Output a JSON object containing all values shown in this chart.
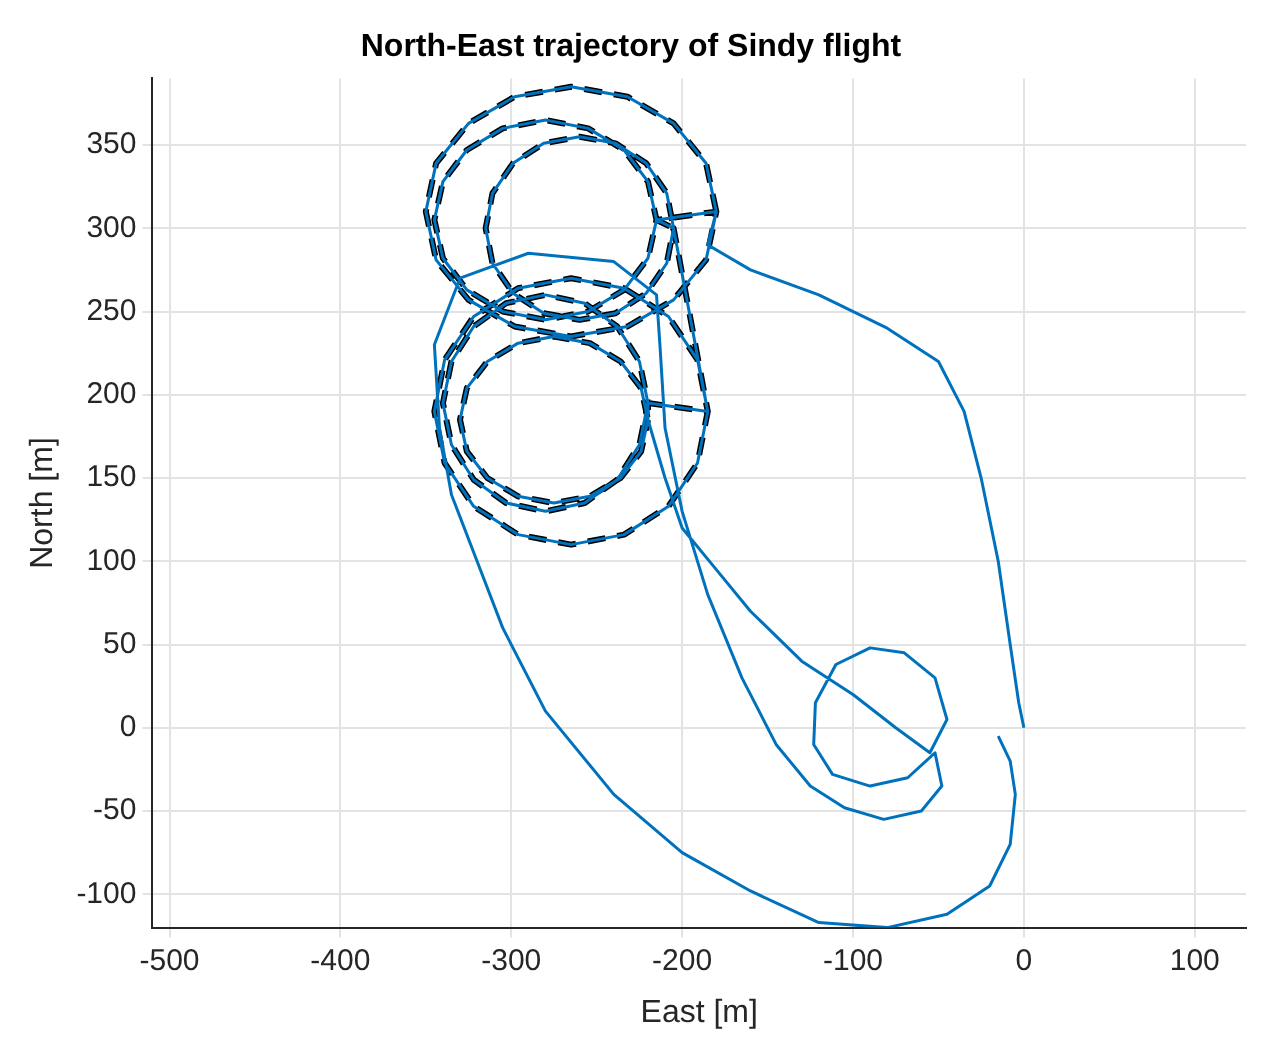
{
  "chart_data": {
    "type": "line",
    "title": "North-East trajectory of Sindy flight",
    "xlabel": "East [m]",
    "ylabel": "North [m]",
    "xlim": [
      -510,
      130
    ],
    "ylim": [
      -120,
      390
    ],
    "xticks": [
      -500,
      -400,
      -300,
      -200,
      -100,
      0,
      100
    ],
    "yticks": [
      -100,
      -50,
      0,
      50,
      100,
      150,
      200,
      250,
      300,
      350
    ],
    "grid": true,
    "legend": false,
    "marker": "none",
    "series": [
      {
        "color": "#0072bd",
        "line_style": "solid",
        "x": [
          0,
          -3,
          -8,
          -15,
          -25,
          -35,
          -50,
          -80,
          -120,
          -160,
          -185,
          -180,
          -186,
          -205,
          -232,
          -265,
          -298,
          -325,
          -344,
          -350,
          -344,
          -325,
          -298,
          -265,
          -232,
          -205,
          -186,
          -180,
          -215,
          -220,
          -234,
          -255,
          -280,
          -305,
          -326,
          -340,
          -345,
          -340,
          -326,
          -305,
          -280,
          -255,
          -234,
          -220,
          -215,
          -205,
          -209,
          -221,
          -239,
          -260,
          -281,
          -299,
          -311,
          -315,
          -311,
          -299,
          -281,
          -260,
          -239,
          -221,
          -209,
          -205,
          -185,
          -191,
          -208,
          -234,
          -265,
          -296,
          -322,
          -339,
          -345,
          -339,
          -322,
          -296,
          -265,
          -234,
          -208,
          -191,
          -185,
          -220,
          -225,
          -238,
          -257,
          -280,
          -303,
          -322,
          -335,
          -340,
          -335,
          -322,
          -303,
          -280,
          -257,
          -238,
          -225,
          -220,
          -220,
          -224,
          -236,
          -254,
          -275,
          -296,
          -314,
          -326,
          -330,
          -326,
          -314,
          -296,
          -275,
          -254,
          -236,
          -224,
          -220,
          -210,
          -200,
          -180,
          -160,
          -130,
          -100,
          -75,
          -55,
          -45,
          -52,
          -70,
          -90,
          -110,
          -122,
          -123,
          -112,
          -90,
          -68,
          -52,
          -48,
          -60,
          -82,
          -105,
          -125,
          -145,
          -165,
          -185,
          -200,
          -210,
          -213,
          -215,
          -240,
          -290,
          -330,
          -345,
          -342,
          -335,
          -320,
          -305,
          -280,
          -240,
          -200,
          -160,
          -120,
          -80,
          -45,
          -20,
          -8,
          -5,
          -8,
          -15
        ],
        "values": [
          0,
          15,
          50,
          100,
          150,
          190,
          220,
          240,
          260,
          275,
          290,
          310,
          339,
          363,
          379,
          385,
          379,
          363,
          339,
          310,
          281,
          257,
          241,
          235,
          241,
          257,
          281,
          310,
          305,
          328,
          347,
          360,
          365,
          360,
          347,
          328,
          305,
          282,
          263,
          250,
          245,
          250,
          263,
          282,
          305,
          300,
          321,
          339,
          351,
          355,
          351,
          339,
          321,
          300,
          279,
          261,
          249,
          245,
          249,
          261,
          279,
          300,
          190,
          221,
          247,
          264,
          270,
          264,
          247,
          221,
          190,
          159,
          133,
          116,
          110,
          116,
          133,
          159,
          190,
          195,
          220,
          241,
          255,
          260,
          255,
          241,
          220,
          195,
          170,
          149,
          135,
          130,
          135,
          149,
          170,
          195,
          185,
          204,
          220,
          231,
          235,
          231,
          220,
          204,
          185,
          166,
          150,
          139,
          135,
          139,
          150,
          166,
          185,
          150,
          120,
          95,
          70,
          40,
          20,
          0,
          -15,
          5,
          30,
          45,
          48,
          38,
          15,
          -10,
          -28,
          -35,
          -30,
          -15,
          -35,
          -50,
          -55,
          -48,
          -35,
          -10,
          30,
          80,
          130,
          180,
          230,
          260,
          280,
          285,
          270,
          230,
          180,
          140,
          100,
          60,
          10,
          -40,
          -75,
          -98,
          -117,
          -120,
          -112,
          -95,
          -70,
          -40,
          -20,
          -5
        ]
      },
      {
        "color": "#000000",
        "line_style": "dashed",
        "x": [
          -180,
          -186,
          -205,
          -232,
          -265,
          -298,
          -325,
          -344,
          -350,
          -344,
          -325,
          -298,
          -265,
          -232,
          -205,
          -186,
          -180,
          -215,
          -220,
          -234,
          -255,
          -280,
          -305,
          -326,
          -340,
          -345,
          -340,
          -326,
          -305,
          -280,
          -255,
          -234,
          -220,
          -215,
          -205,
          -209,
          -221,
          -239,
          -260,
          -281,
          -299,
          -311,
          -315,
          -311,
          -299,
          -281,
          -260,
          -239,
          -221,
          -209,
          -205,
          -185,
          -191,
          -208,
          -234,
          -265,
          -296,
          -322,
          -339,
          -345,
          -339,
          -322,
          -296,
          -265,
          -234,
          -208,
          -191,
          -185,
          -220,
          -225,
          -238,
          -257,
          -280,
          -303,
          -322,
          -335,
          -340,
          -335,
          -322,
          -303,
          -280,
          -257,
          -238,
          -225,
          -220,
          -220,
          -224,
          -236,
          -254,
          -275,
          -296,
          -314,
          -326,
          -330,
          -326,
          -314,
          -296,
          -275,
          -254,
          -236,
          -224,
          -220
        ],
        "values": [
          310,
          339,
          363,
          379,
          385,
          379,
          363,
          339,
          310,
          281,
          257,
          241,
          235,
          241,
          257,
          281,
          310,
          305,
          328,
          347,
          360,
          365,
          360,
          347,
          328,
          305,
          282,
          263,
          250,
          245,
          250,
          263,
          282,
          305,
          300,
          321,
          339,
          351,
          355,
          351,
          339,
          321,
          300,
          279,
          261,
          249,
          245,
          249,
          261,
          279,
          300,
          190,
          221,
          247,
          264,
          270,
          264,
          247,
          221,
          190,
          159,
          133,
          116,
          110,
          116,
          133,
          159,
          190,
          195,
          220,
          241,
          255,
          260,
          255,
          241,
          220,
          195,
          170,
          149,
          135,
          130,
          135,
          149,
          170,
          195,
          185,
          204,
          220,
          231,
          235,
          231,
          220,
          204,
          185,
          166,
          150,
          139,
          135,
          139,
          150,
          166,
          185
        ]
      }
    ]
  }
}
